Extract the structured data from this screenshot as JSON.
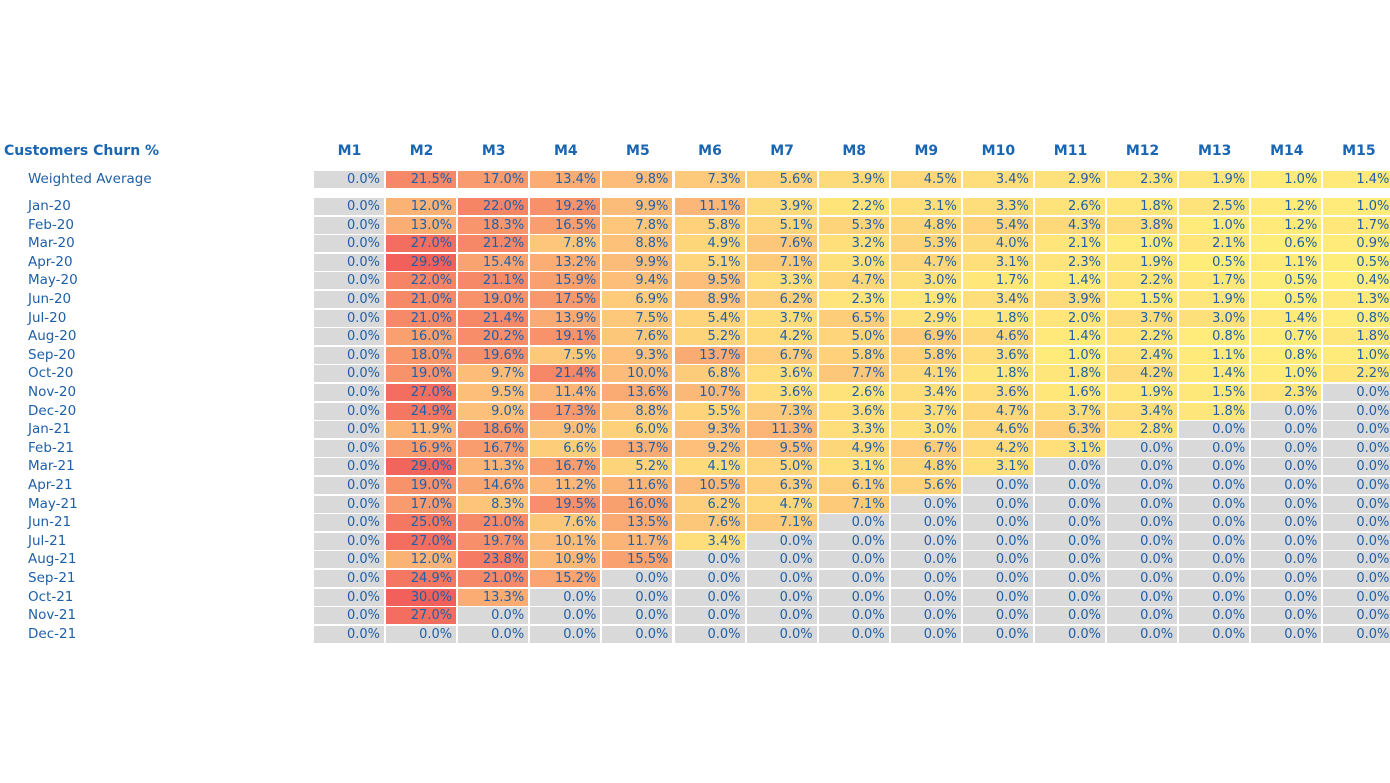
{
  "chart_data": {
    "type": "heatmap",
    "title": "Customers Churn %",
    "columns": [
      "M1",
      "M2",
      "M3",
      "M4",
      "M5",
      "M6",
      "M7",
      "M8",
      "M9",
      "M10",
      "M11",
      "M12",
      "M13",
      "M14",
      "M15"
    ],
    "weighted_average": {
      "label": "Weighted Average",
      "values": [
        0.0,
        21.5,
        17.0,
        13.4,
        9.8,
        7.3,
        5.6,
        3.9,
        4.5,
        3.4,
        2.9,
        2.3,
        1.9,
        1.0,
        1.4
      ]
    },
    "rows": [
      {
        "label": "Jan-20",
        "values": [
          0.0,
          12.0,
          22.0,
          19.2,
          9.9,
          11.1,
          3.9,
          2.2,
          3.1,
          3.3,
          2.6,
          1.8,
          2.5,
          1.2,
          1.0
        ]
      },
      {
        "label": "Feb-20",
        "values": [
          0.0,
          13.0,
          18.3,
          16.5,
          7.8,
          5.8,
          5.1,
          5.3,
          4.8,
          5.4,
          4.3,
          3.8,
          1.0,
          1.2,
          1.7
        ]
      },
      {
        "label": "Mar-20",
        "values": [
          0.0,
          27.0,
          21.2,
          7.8,
          8.8,
          4.9,
          7.6,
          3.2,
          5.3,
          4.0,
          2.1,
          1.0,
          2.1,
          0.6,
          0.9
        ]
      },
      {
        "label": "Apr-20",
        "values": [
          0.0,
          29.9,
          15.4,
          13.2,
          9.9,
          5.1,
          7.1,
          3.0,
          4.7,
          3.1,
          2.3,
          1.9,
          0.5,
          1.1,
          0.5
        ]
      },
      {
        "label": "May-20",
        "values": [
          0.0,
          22.0,
          21.1,
          15.9,
          9.4,
          9.5,
          3.3,
          4.7,
          3.0,
          1.7,
          1.4,
          2.2,
          1.7,
          0.5,
          0.4
        ]
      },
      {
        "label": "Jun-20",
        "values": [
          0.0,
          21.0,
          19.0,
          17.5,
          6.9,
          8.9,
          6.2,
          2.3,
          1.9,
          3.4,
          3.9,
          1.5,
          1.9,
          0.5,
          1.3
        ]
      },
      {
        "label": "Jul-20",
        "values": [
          0.0,
          21.0,
          21.4,
          13.9,
          7.5,
          5.4,
          3.7,
          6.5,
          2.9,
          1.8,
          2.0,
          3.7,
          3.0,
          1.4,
          0.8
        ]
      },
      {
        "label": "Aug-20",
        "values": [
          0.0,
          16.0,
          20.2,
          19.1,
          7.6,
          5.2,
          4.2,
          5.0,
          6.9,
          4.6,
          1.4,
          2.2,
          0.8,
          0.7,
          1.8
        ]
      },
      {
        "label": "Sep-20",
        "values": [
          0.0,
          18.0,
          19.6,
          7.5,
          9.3,
          13.7,
          6.7,
          5.8,
          5.8,
          3.6,
          1.0,
          2.4,
          1.1,
          0.8,
          1.0
        ]
      },
      {
        "label": "Oct-20",
        "values": [
          0.0,
          19.0,
          9.7,
          21.4,
          10.0,
          6.8,
          3.6,
          7.7,
          4.1,
          1.8,
          1.8,
          4.2,
          1.4,
          1.0,
          2.2
        ]
      },
      {
        "label": "Nov-20",
        "values": [
          0.0,
          27.0,
          9.5,
          11.4,
          13.6,
          10.7,
          3.6,
          2.6,
          3.4,
          3.6,
          1.6,
          1.9,
          1.5,
          2.3,
          0.0
        ]
      },
      {
        "label": "Dec-20",
        "values": [
          0.0,
          24.9,
          9.0,
          17.3,
          8.8,
          5.5,
          7.3,
          3.6,
          3.7,
          4.7,
          3.7,
          3.4,
          1.8,
          0.0,
          0.0
        ]
      },
      {
        "label": "Jan-21",
        "values": [
          0.0,
          11.9,
          18.6,
          9.0,
          6.0,
          9.3,
          11.3,
          3.3,
          3.0,
          4.6,
          6.3,
          2.8,
          0.0,
          0.0,
          0.0
        ]
      },
      {
        "label": "Feb-21",
        "values": [
          0.0,
          16.9,
          16.7,
          6.6,
          13.7,
          9.2,
          9.5,
          4.9,
          6.7,
          4.2,
          3.1,
          0.0,
          0.0,
          0.0,
          0.0
        ]
      },
      {
        "label": "Mar-21",
        "values": [
          0.0,
          29.0,
          11.3,
          16.7,
          5.2,
          4.1,
          5.0,
          3.1,
          4.8,
          3.1,
          0.0,
          0.0,
          0.0,
          0.0,
          0.0
        ]
      },
      {
        "label": "Apr-21",
        "values": [
          0.0,
          19.0,
          14.6,
          11.2,
          11.6,
          10.5,
          6.3,
          6.1,
          5.6,
          0.0,
          0.0,
          0.0,
          0.0,
          0.0,
          0.0
        ]
      },
      {
        "label": "May-21",
        "values": [
          0.0,
          17.0,
          8.3,
          19.5,
          16.0,
          6.2,
          4.7,
          7.1,
          0.0,
          0.0,
          0.0,
          0.0,
          0.0,
          0.0,
          0.0
        ]
      },
      {
        "label": "Jun-21",
        "values": [
          0.0,
          25.0,
          21.0,
          7.6,
          13.5,
          7.6,
          7.1,
          0.0,
          0.0,
          0.0,
          0.0,
          0.0,
          0.0,
          0.0,
          0.0
        ]
      },
      {
        "label": "Jul-21",
        "values": [
          0.0,
          27.0,
          19.7,
          10.1,
          11.7,
          3.4,
          0.0,
          0.0,
          0.0,
          0.0,
          0.0,
          0.0,
          0.0,
          0.0,
          0.0
        ]
      },
      {
        "label": "Aug-21",
        "values": [
          0.0,
          12.0,
          23.8,
          10.9,
          15.5,
          0.0,
          0.0,
          0.0,
          0.0,
          0.0,
          0.0,
          0.0,
          0.0,
          0.0,
          0.0
        ]
      },
      {
        "label": "Sep-21",
        "values": [
          0.0,
          24.9,
          21.0,
          15.2,
          0.0,
          0.0,
          0.0,
          0.0,
          0.0,
          0.0,
          0.0,
          0.0,
          0.0,
          0.0,
          0.0
        ]
      },
      {
        "label": "Oct-21",
        "values": [
          0.0,
          30.0,
          13.3,
          0.0,
          0.0,
          0.0,
          0.0,
          0.0,
          0.0,
          0.0,
          0.0,
          0.0,
          0.0,
          0.0,
          0.0
        ]
      },
      {
        "label": "Nov-21",
        "values": [
          0.0,
          27.0,
          0.0,
          0.0,
          0.0,
          0.0,
          0.0,
          0.0,
          0.0,
          0.0,
          0.0,
          0.0,
          0.0,
          0.0,
          0.0
        ]
      },
      {
        "label": "Dec-21",
        "values": [
          0.0,
          0.0,
          0.0,
          0.0,
          0.0,
          0.0,
          0.0,
          0.0,
          0.0,
          0.0,
          0.0,
          0.0,
          0.0,
          0.0,
          0.0
        ]
      }
    ],
    "value_format": "percent, 1 decimal",
    "color_scale": {
      "zero": "#d9d9d9",
      "low": "#fff07a",
      "mid": "#fdc07a",
      "high": "#f1605a",
      "max_value": 30.0
    }
  }
}
